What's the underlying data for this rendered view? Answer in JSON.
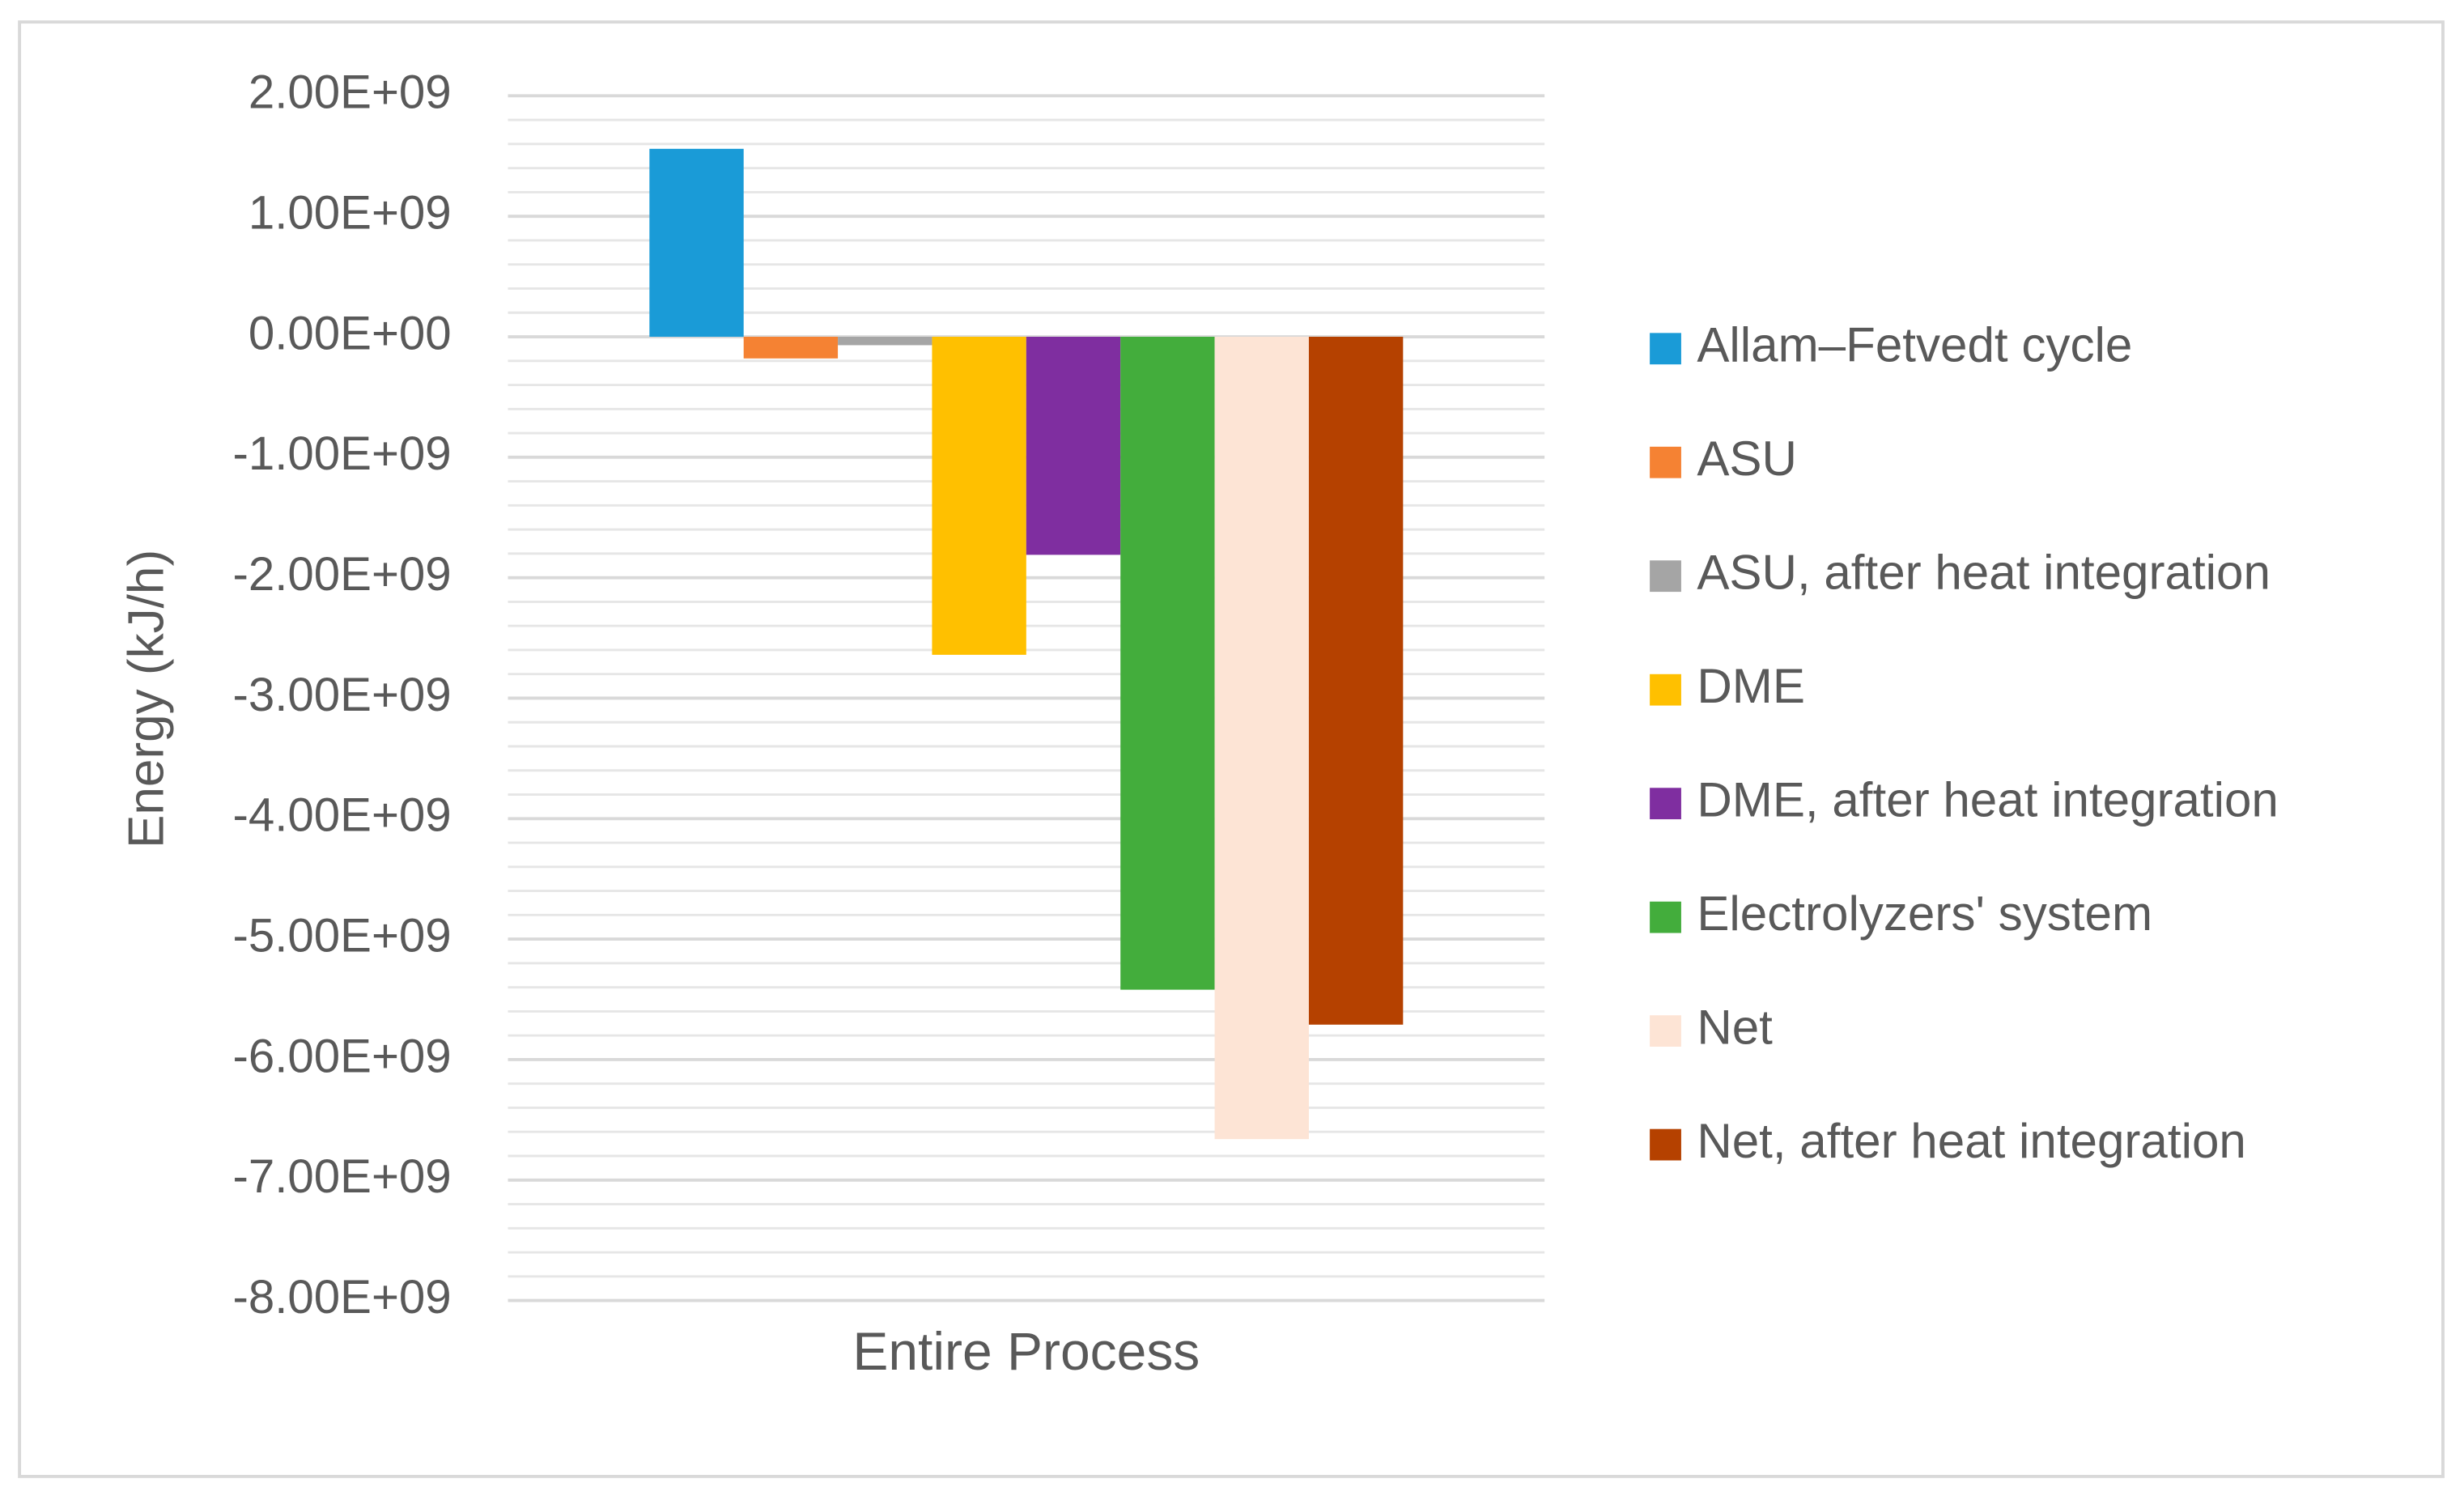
{
  "chart_data": {
    "type": "bar",
    "y_axis_label": "Energy (kJ/h)",
    "categories": [
      "Entire Process"
    ],
    "series": [
      {
        "name": "Allam–Fetvedt cycle",
        "color": "#1a9bd7",
        "values": [
          1560000000
        ]
      },
      {
        "name": "ASU",
        "color": "#f58233",
        "values": [
          -180000000
        ]
      },
      {
        "name": "ASU, after heat integration",
        "color": "#a5a5a5",
        "values": [
          -70000000
        ]
      },
      {
        "name": "DME",
        "color": "#ffc000",
        "values": [
          -2640000000
        ]
      },
      {
        "name": "DME, after heat integration",
        "color": "#7f2ea0",
        "values": [
          -1810000000
        ]
      },
      {
        "name": "Electrolyzers' system",
        "color": "#43ad3c",
        "values": [
          -5420000000
        ]
      },
      {
        "name": "Net",
        "color": "#fde4d5",
        "values": [
          -6660000000
        ]
      },
      {
        "name": "Net, after heat integration",
        "color": "#b54100",
        "values": [
          -5710000000
        ]
      }
    ],
    "ylim": [
      -8000000000,
      2000000000
    ],
    "yticks": [
      {
        "value": 2000000000,
        "label": "2.00E+09"
      },
      {
        "value": 1000000000,
        "label": "1.00E+09"
      },
      {
        "value": 0,
        "label": "0.00E+00"
      },
      {
        "value": -1000000000,
        "label": "-1.00E+09"
      },
      {
        "value": -2000000000,
        "label": "-2.00E+09"
      },
      {
        "value": -3000000000,
        "label": "-3.00E+09"
      },
      {
        "value": -4000000000,
        "label": "-4.00E+09"
      },
      {
        "value": -5000000000,
        "label": "-5.00E+09"
      },
      {
        "value": -6000000000,
        "label": "-6.00E+09"
      },
      {
        "value": -7000000000,
        "label": "-7.00E+09"
      },
      {
        "value": -8000000000,
        "label": "-8.00E+09"
      }
    ],
    "minor_yticks": [
      1800000000,
      1600000000,
      1400000000,
      1200000000,
      800000000,
      600000000,
      400000000,
      200000000,
      -200000000,
      -400000000,
      -600000000,
      -800000000,
      -1200000000,
      -1400000000,
      -1600000000,
      -1800000000,
      -2200000000,
      -2400000000,
      -2600000000,
      -2800000000,
      -3200000000,
      -3400000000,
      -3600000000,
      -3800000000,
      -4200000000,
      -4400000000,
      -4600000000,
      -4800000000,
      -5200000000,
      -5400000000,
      -5600000000,
      -5800000000,
      -6200000000,
      -6400000000,
      -6600000000,
      -6800000000,
      -7200000000,
      -7400000000,
      -7600000000,
      -7800000000
    ],
    "grid": true,
    "legend_position": "right"
  }
}
